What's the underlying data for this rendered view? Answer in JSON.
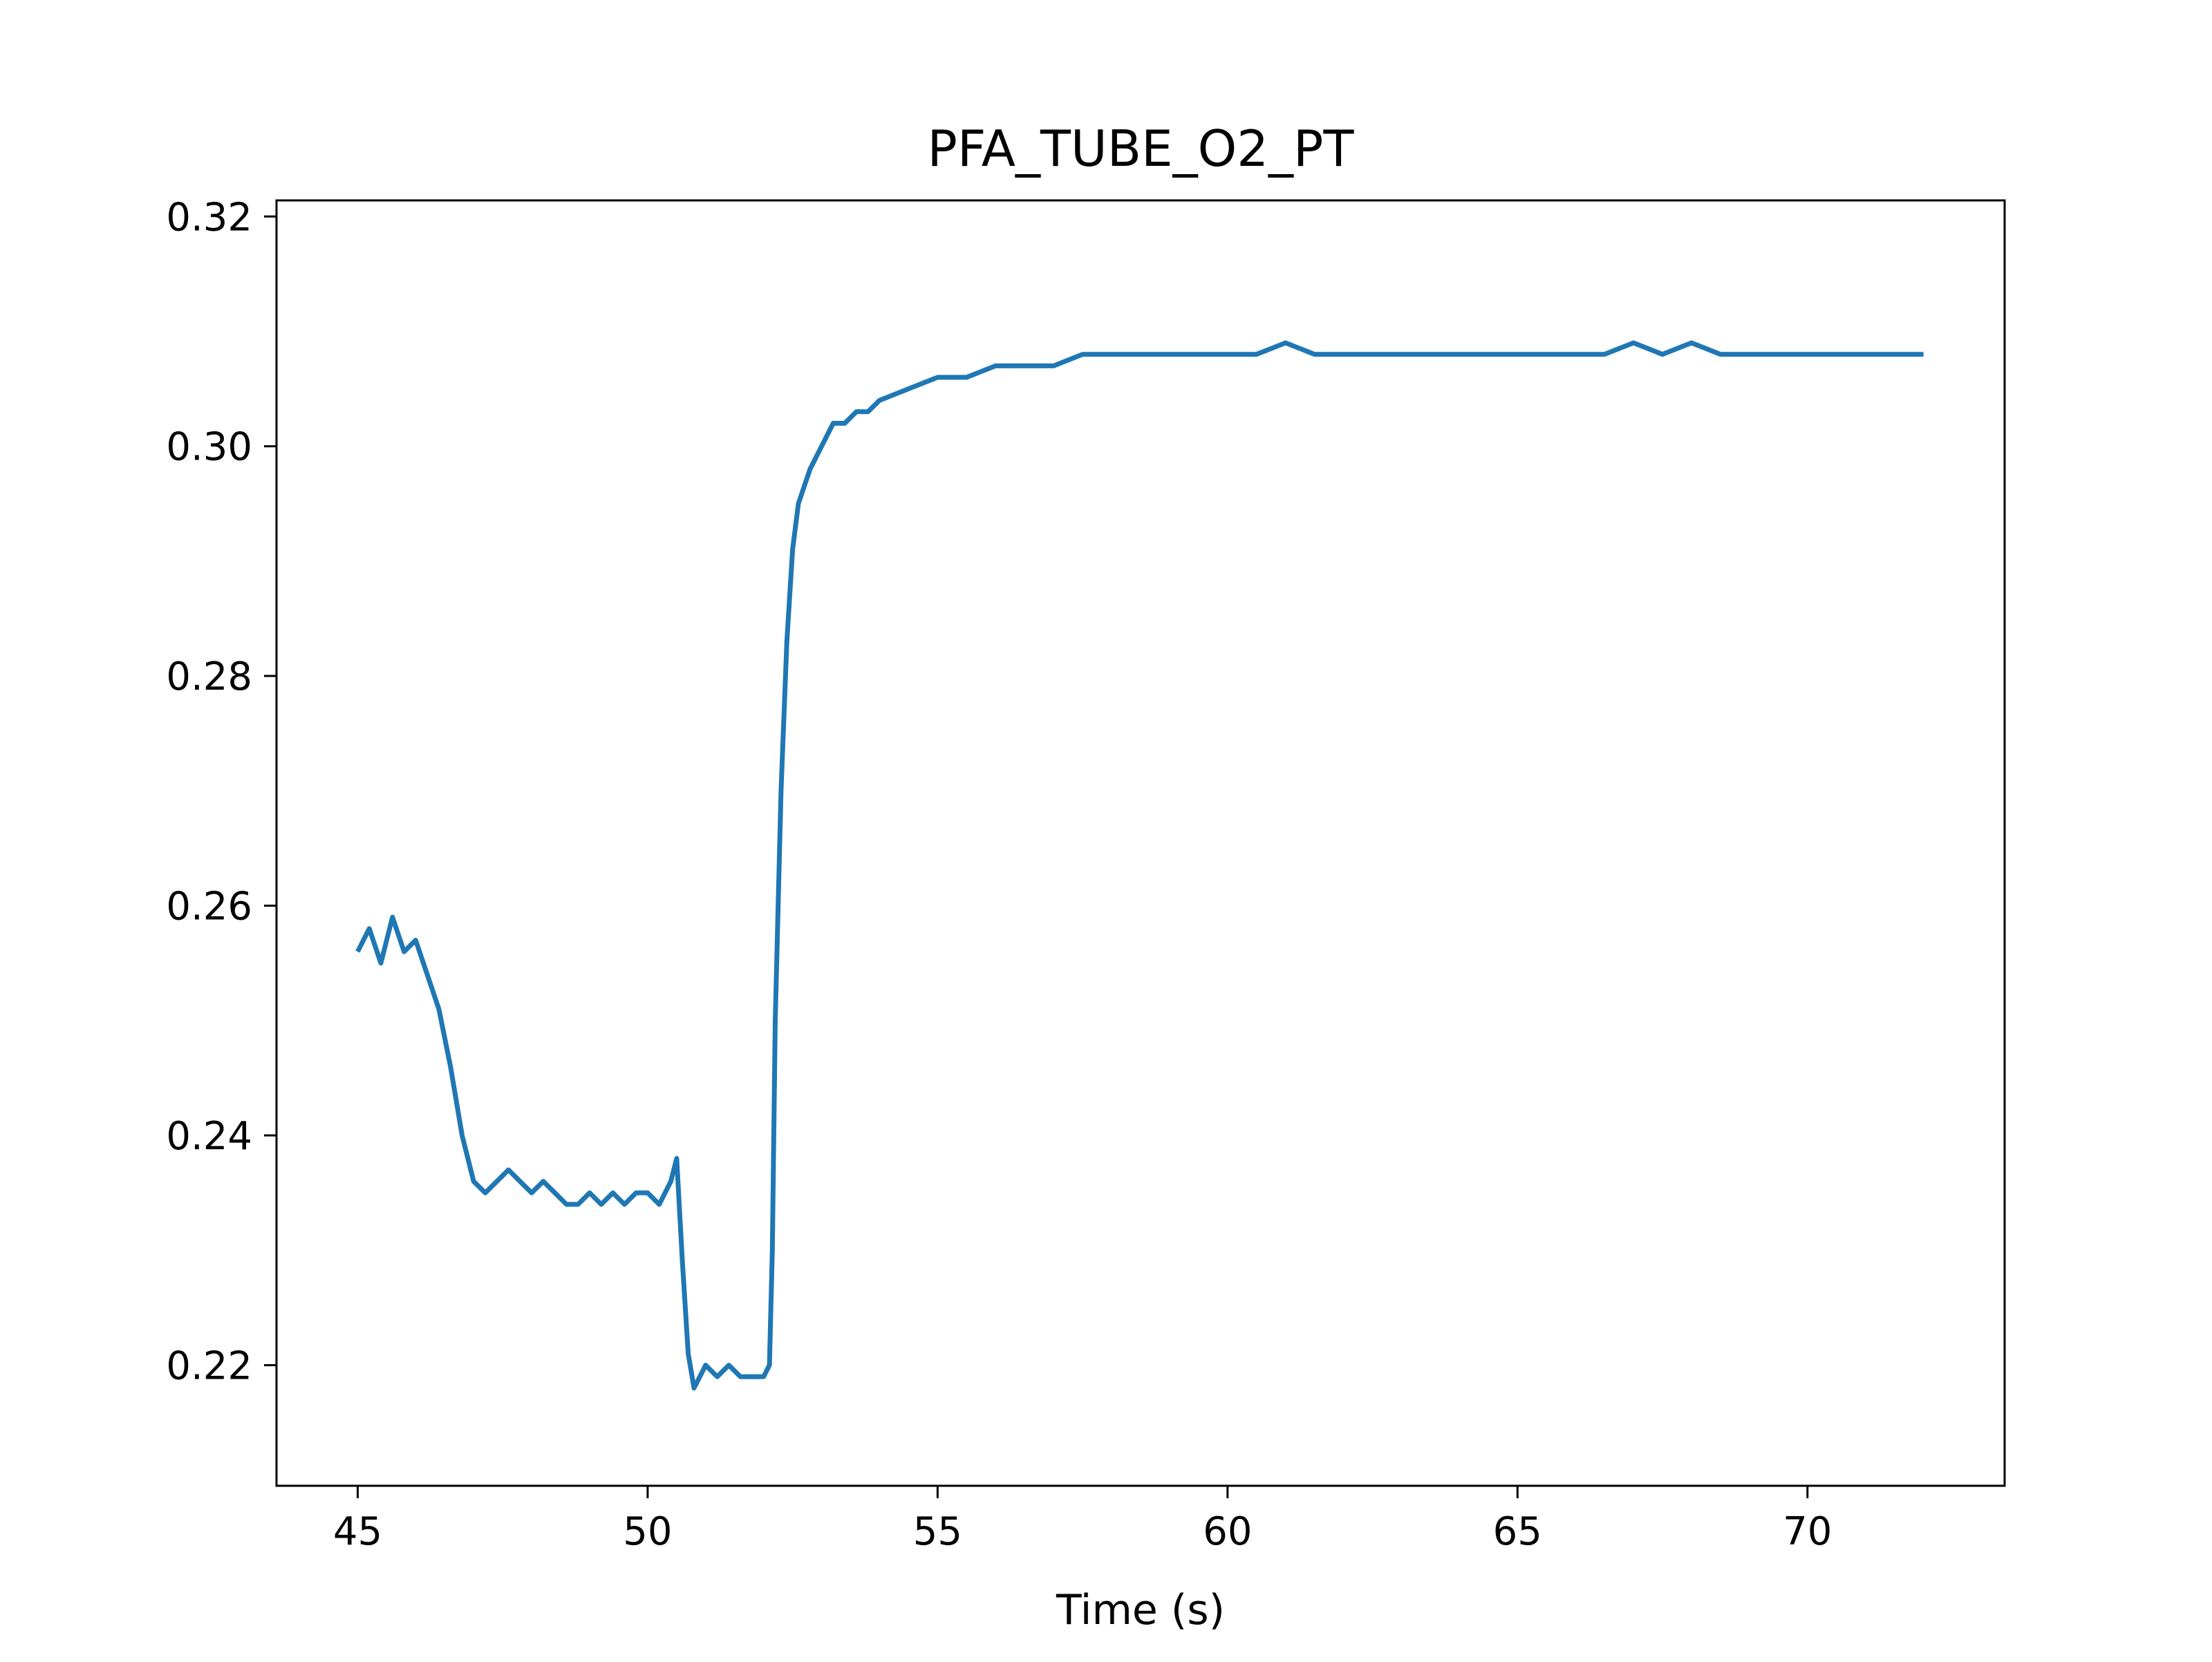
{
  "chart_data": {
    "type": "line",
    "title": "PFA_TUBE_O2_PT",
    "xlabel": "Time (s)",
    "ylabel": "",
    "xlim": [
      43.6,
      73.4
    ],
    "ylim": [
      0.2095,
      0.3214
    ],
    "x_ticks": [
      45,
      50,
      55,
      60,
      65,
      70
    ],
    "x_tick_labels": [
      "45",
      "50",
      "55",
      "60",
      "65",
      "70"
    ],
    "y_ticks": [
      0.22,
      0.24,
      0.26,
      0.28,
      0.3,
      0.32
    ],
    "y_tick_labels": [
      "0.22",
      "0.24",
      "0.26",
      "0.28",
      "0.30",
      "0.32"
    ],
    "grid": false,
    "legend": "none",
    "series": [
      {
        "color": "#1f77b4",
        "x": [
          45.0,
          45.2,
          45.4,
          45.6,
          45.8,
          46.0,
          46.2,
          46.4,
          46.6,
          46.8,
          47.0,
          47.2,
          47.4,
          47.6,
          47.8,
          48.0,
          48.2,
          48.4,
          48.6,
          48.8,
          49.0,
          49.2,
          49.4,
          49.6,
          49.8,
          50.0,
          50.2,
          50.4,
          50.5,
          50.6,
          50.7,
          50.8,
          51.0,
          51.2,
          51.4,
          51.6,
          51.8,
          52.0,
          52.1,
          52.15,
          52.2,
          52.3,
          52.4,
          52.5,
          52.6,
          52.8,
          53.0,
          53.2,
          53.4,
          53.6,
          53.8,
          54.0,
          54.5,
          55.0,
          55.5,
          56.0,
          56.5,
          57.0,
          57.5,
          58.0,
          58.5,
          59.0,
          59.5,
          60.0,
          60.5,
          61.0,
          61.5,
          62.0,
          62.5,
          63.0,
          63.5,
          64.0,
          64.5,
          65.0,
          65.5,
          66.0,
          66.5,
          67.0,
          67.5,
          68.0,
          68.5,
          69.0,
          69.5,
          70.0,
          70.5,
          71.0,
          71.5,
          72.0
        ],
        "y": [
          0.256,
          0.258,
          0.255,
          0.259,
          0.256,
          0.257,
          0.254,
          0.251,
          0.246,
          0.24,
          0.236,
          0.235,
          0.236,
          0.237,
          0.236,
          0.235,
          0.236,
          0.235,
          0.234,
          0.234,
          0.235,
          0.234,
          0.235,
          0.234,
          0.235,
          0.235,
          0.234,
          0.236,
          0.238,
          0.229,
          0.221,
          0.218,
          0.22,
          0.219,
          0.22,
          0.219,
          0.219,
          0.219,
          0.22,
          0.23,
          0.25,
          0.27,
          0.283,
          0.291,
          0.295,
          0.298,
          0.3,
          0.302,
          0.302,
          0.303,
          0.303,
          0.304,
          0.305,
          0.306,
          0.306,
          0.307,
          0.307,
          0.307,
          0.308,
          0.308,
          0.308,
          0.308,
          0.308,
          0.308,
          0.308,
          0.309,
          0.308,
          0.308,
          0.308,
          0.308,
          0.308,
          0.308,
          0.308,
          0.308,
          0.308,
          0.308,
          0.308,
          0.309,
          0.308,
          0.309,
          0.308,
          0.308,
          0.308,
          0.308,
          0.308,
          0.308,
          0.308,
          0.308
        ]
      }
    ]
  }
}
